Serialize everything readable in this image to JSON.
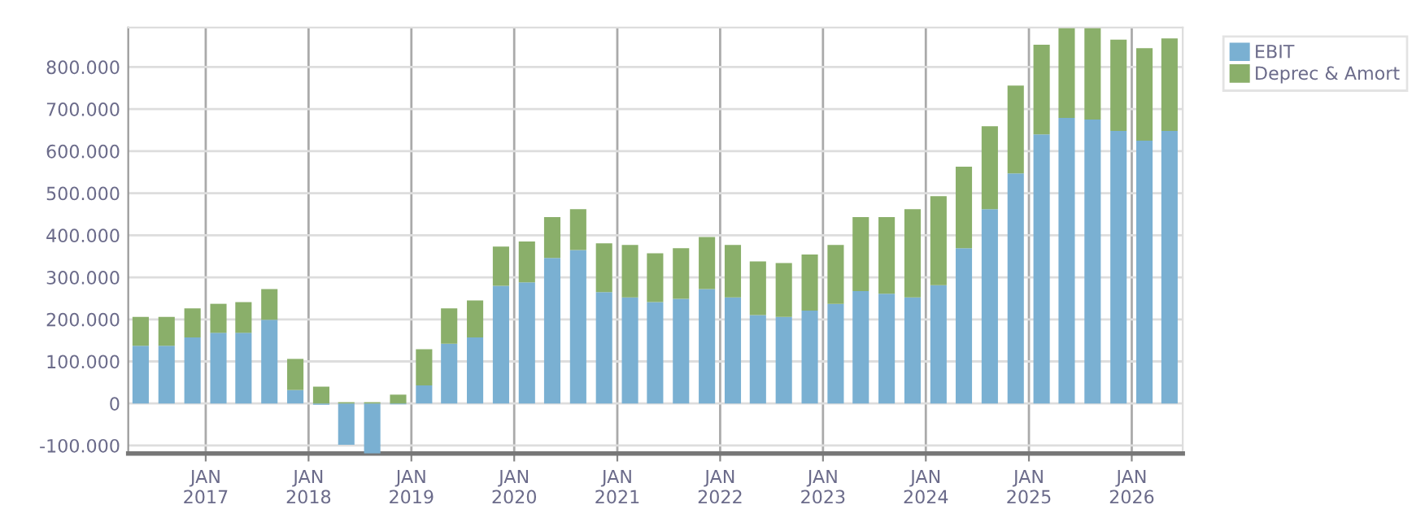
{
  "chart_data": {
    "type": "bar",
    "stacked": true,
    "x": [
      "2016-05-15",
      "2016-08-15",
      "2016-11-15",
      "2017-02-15",
      "2017-05-15",
      "2017-08-15",
      "2017-11-15",
      "2018-02-15",
      "2018-05-15",
      "2018-08-15",
      "2018-11-15",
      "2019-02-15",
      "2019-05-15",
      "2019-08-15",
      "2019-11-15",
      "2020-02-15",
      "2020-05-15",
      "2020-08-15",
      "2020-11-15",
      "2021-02-15",
      "2021-05-15",
      "2021-08-15",
      "2021-11-15",
      "2022-02-15",
      "2022-05-15",
      "2022-08-15",
      "2022-11-15",
      "2023-02-15",
      "2023-05-15",
      "2023-08-15",
      "2023-11-15",
      "2024-02-15",
      "2024-05-15",
      "2024-08-15",
      "2024-11-15",
      "2025-02-15",
      "2025-05-15",
      "2025-08-15",
      "2025-11-15",
      "2026-02-15",
      "2026-05-15"
    ],
    "series": [
      {
        "name": "EBIT",
        "color": "#7ab0d2",
        "values": [
          137000,
          137000,
          157000,
          168000,
          168000,
          199000,
          32000,
          -3000,
          -98000,
          -119000,
          -2000,
          43000,
          142000,
          157000,
          280000,
          288000,
          346000,
          365000,
          265000,
          252000,
          241000,
          249000,
          272000,
          252000,
          210000,
          206000,
          221000,
          237000,
          267000,
          261000,
          252000,
          281000,
          369000,
          462000,
          547000,
          640000,
          679000,
          675000,
          648000,
          625000,
          648000
        ]
      },
      {
        "name": "Deprec & Amort",
        "color": "#8aaf6a",
        "values": [
          69000,
          69000,
          69000,
          69000,
          73000,
          73000,
          74000,
          40000,
          3000,
          3000,
          21000,
          86000,
          84000,
          88000,
          93000,
          97000,
          97000,
          97000,
          116000,
          125000,
          116000,
          120000,
          124000,
          125000,
          128000,
          128000,
          133000,
          140000,
          176000,
          182000,
          210000,
          212000,
          194000,
          197000,
          209000,
          213000,
          213000,
          217000,
          217000,
          220000,
          220000
        ]
      }
    ],
    "xlim": [
      "2016-04-01",
      "2026-07-01"
    ],
    "xticks": [
      {
        "value": "2017-01-01",
        "label": "JAN\n2017"
      },
      {
        "value": "2018-01-01",
        "label": "JAN\n2018"
      },
      {
        "value": "2019-01-01",
        "label": "JAN\n2019"
      },
      {
        "value": "2020-01-01",
        "label": "JAN\n2020"
      },
      {
        "value": "2021-01-01",
        "label": "JAN\n2021"
      },
      {
        "value": "2022-01-01",
        "label": "JAN\n2022"
      },
      {
        "value": "2023-01-01",
        "label": "JAN\n2023"
      },
      {
        "value": "2024-01-01",
        "label": "JAN\n2024"
      },
      {
        "value": "2025-01-01",
        "label": "JAN\n2025"
      },
      {
        "value": "2026-01-01",
        "label": "JAN\n2026"
      }
    ],
    "ylim": [
      -119000,
      894000
    ],
    "yticks": [
      {
        "value": -100000,
        "label": "-100.000"
      },
      {
        "value": 0,
        "label": "0"
      },
      {
        "value": 100000,
        "label": "100.000"
      },
      {
        "value": 200000,
        "label": "200.000"
      },
      {
        "value": 300000,
        "label": "300.000"
      },
      {
        "value": 400000,
        "label": "400.000"
      },
      {
        "value": 500000,
        "label": "500.000"
      },
      {
        "value": 600000,
        "label": "600.000"
      },
      {
        "value": 700000,
        "label": "700.000"
      },
      {
        "value": 800000,
        "label": "800.000"
      }
    ],
    "grid": true,
    "legend": "top right"
  }
}
